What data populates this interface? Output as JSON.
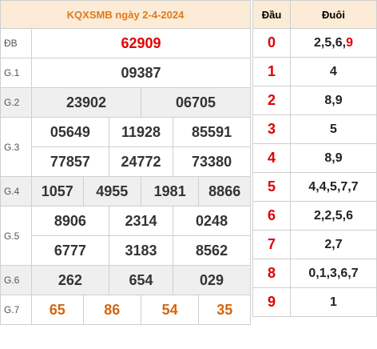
{
  "results": {
    "title": "KQXSMB ngày 2-4-2024",
    "rows": [
      {
        "label": "ĐB",
        "values": [
          "62909"
        ]
      },
      {
        "label": "G.1",
        "values": [
          "09387"
        ]
      },
      {
        "label": "G.2",
        "values": [
          "23902",
          "06705"
        ]
      },
      {
        "label": "G.3",
        "values": [
          "05649",
          "11928",
          "85591",
          "77857",
          "24772",
          "73380"
        ]
      },
      {
        "label": "G.4",
        "values": [
          "1057",
          "4955",
          "1981",
          "8866"
        ]
      },
      {
        "label": "G.5",
        "values": [
          "8906",
          "2314",
          "0248",
          "6777",
          "3183",
          "8562"
        ]
      },
      {
        "label": "G.6",
        "values": [
          "262",
          "654",
          "029"
        ]
      },
      {
        "label": "G.7",
        "values": [
          "65",
          "86",
          "54",
          "35"
        ]
      }
    ]
  },
  "loto": {
    "head_label": "Đầu",
    "tail_label": "Đuôi",
    "rows": [
      {
        "dau": "0",
        "duoi_prefix": "2,5,6,",
        "duoi_highlight": "9"
      },
      {
        "dau": "1",
        "duoi_prefix": "4",
        "duoi_highlight": ""
      },
      {
        "dau": "2",
        "duoi_prefix": "8,9",
        "duoi_highlight": ""
      },
      {
        "dau": "3",
        "duoi_prefix": "5",
        "duoi_highlight": ""
      },
      {
        "dau": "4",
        "duoi_prefix": "8,9",
        "duoi_highlight": ""
      },
      {
        "dau": "5",
        "duoi_prefix": "4,4,5,7,7",
        "duoi_highlight": ""
      },
      {
        "dau": "6",
        "duoi_prefix": "2,2,5,6",
        "duoi_highlight": ""
      },
      {
        "dau": "7",
        "duoi_prefix": "2,7",
        "duoi_highlight": ""
      },
      {
        "dau": "8",
        "duoi_prefix": "0,1,3,6,7",
        "duoi_highlight": ""
      },
      {
        "dau": "9",
        "duoi_prefix": "1",
        "duoi_highlight": ""
      }
    ]
  },
  "colors": {
    "special": "#e00000",
    "g7": "#d4660e",
    "header_bg": "#fcebd6"
  }
}
